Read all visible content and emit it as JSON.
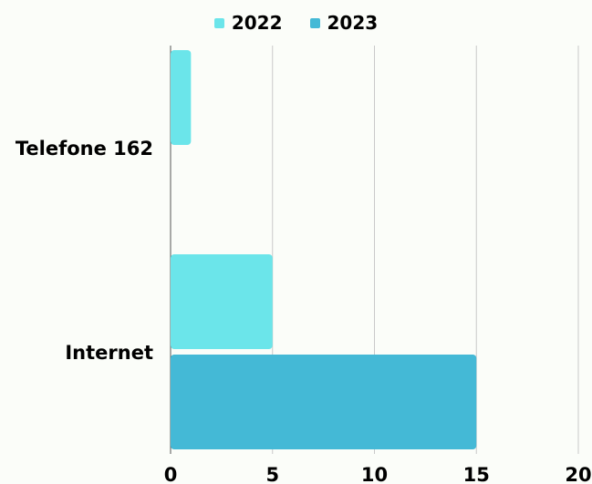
{
  "chart_data": {
    "type": "bar",
    "orientation": "horizontal",
    "categories": [
      "Telefone 162",
      "Internet"
    ],
    "series": [
      {
        "name": "2022",
        "values": [
          1,
          5
        ],
        "color": "#6be5ea"
      },
      {
        "name": "2023",
        "values": [
          0,
          15
        ],
        "color": "#44b9d6"
      }
    ],
    "xlim": [
      0,
      20
    ],
    "xticks": [
      "0",
      "5",
      "10",
      "15",
      "20"
    ],
    "grid": true,
    "legend_position": "top-center"
  }
}
